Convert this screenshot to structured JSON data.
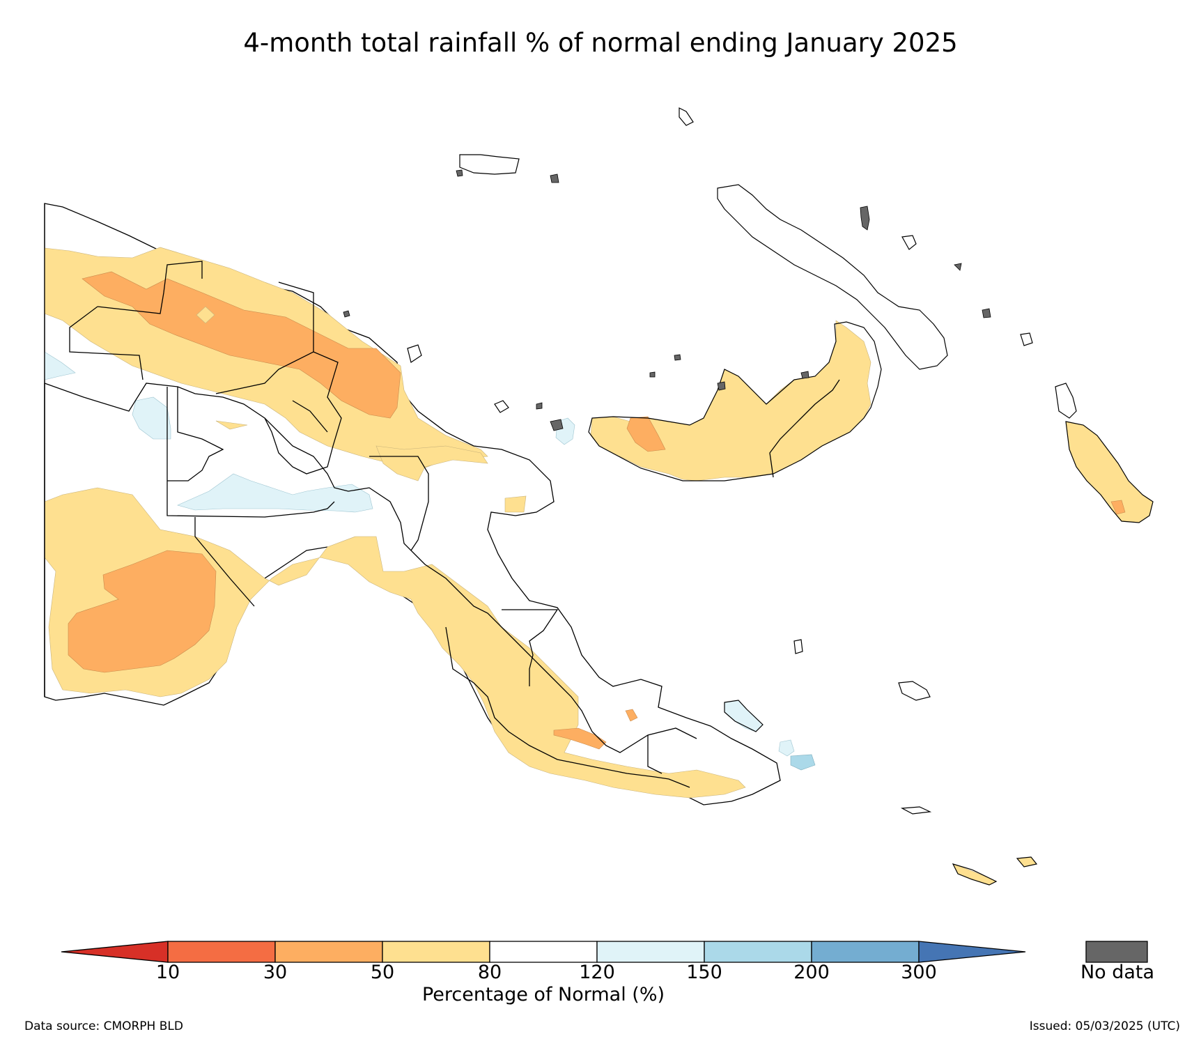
{
  "title": "4-month total rainfall % of normal ending January 2025",
  "colorbar": {
    "label": "Percentage of Normal (%)",
    "ticks": [
      "10",
      "30",
      "50",
      "80",
      "120",
      "150",
      "200",
      "300"
    ],
    "bins": [
      {
        "range": "<10",
        "color": "#d73027"
      },
      {
        "range": "10-30",
        "color": "#f46d43"
      },
      {
        "range": "30-50",
        "color": "#fdae61"
      },
      {
        "range": "50-80",
        "color": "#fee090"
      },
      {
        "range": "80-120",
        "color": "#ffffff"
      },
      {
        "range": "120-150",
        "color": "#e0f3f8"
      },
      {
        "range": "150-200",
        "color": "#abd9e9"
      },
      {
        "range": "200-300",
        "color": "#74add1"
      },
      {
        "range": ">300",
        "color": "#4575b4"
      }
    ],
    "no_data": {
      "label": "No data",
      "color": "#666666"
    }
  },
  "footer": {
    "data_source": "Data source: CMORPH BLD",
    "issued": "Issued: 05/03/2025 (UTC)"
  }
}
